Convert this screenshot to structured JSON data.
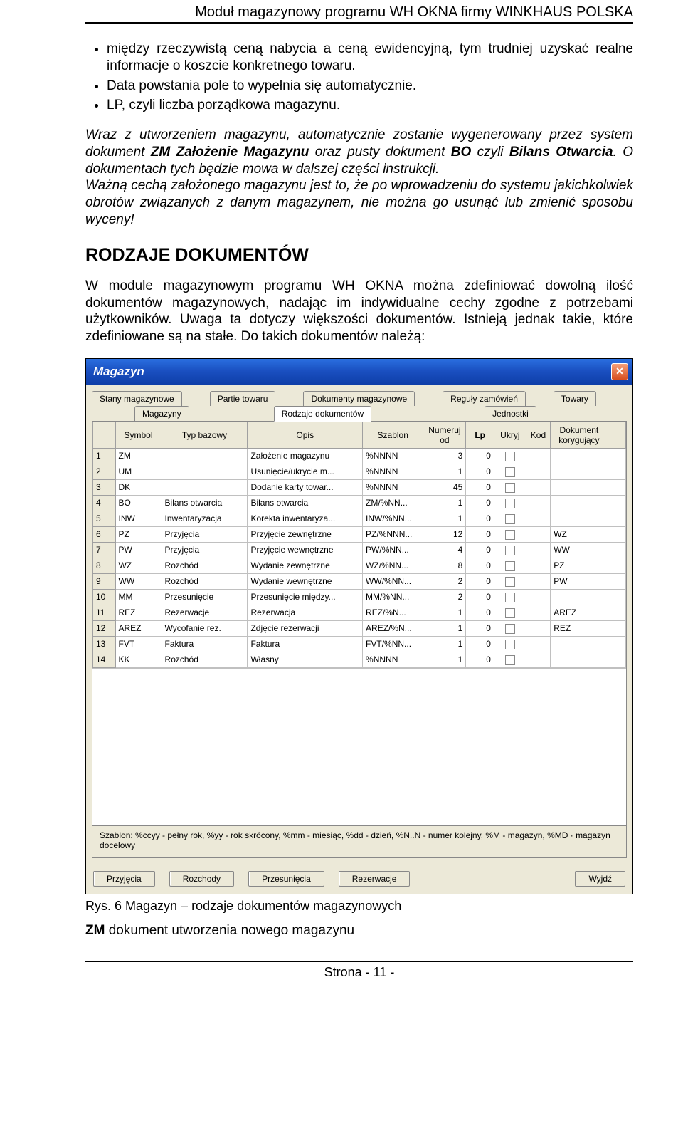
{
  "header": {
    "title": "Moduł magazynowy programu WH OKNA firmy WINKHAUS POLSKA"
  },
  "doc": {
    "bullets": [
      "między rzeczywistą ceną nabycia a ceną ewidencyjną, tym trudniej uzyskać realne informacje o koszcie konkretnego towaru.",
      "Data powstania pole to wypełnia się automatycznie.",
      "LP, czyli liczba porządkowa magazynu."
    ],
    "para1_pre": "Wraz z utworzeniem magazynu, automatycznie zostanie wygenerowany przez system dokument ",
    "para1_zm": "ZM Założenie Magazynu",
    "para1_mid": " oraz pusty dokument ",
    "para1_bo": "BO",
    "para1_mid2": " czyli ",
    "para1_bil": "Bilans Otwarcia",
    "para1_post": ". O dokumentach tych będzie mowa w dalszej części instrukcji.",
    "para2": "Ważną cechą założonego magazynu jest to, że po wprowadzeniu do systemu jakichkolwiek obrotów związanych z danym magazynem, nie można go usunąć lub zmienić sposobu wyceny!",
    "section": "RODZAJE DOKUMENTÓW",
    "para3": "W module magazynowym programu WH OKNA można zdefiniować dowolną ilość dokumentów magazynowych, nadając im indywidualne cechy zgodne z potrzebami użytkowników. Uwaga ta dotyczy większości dokumentów. Istnieją jednak takie, które zdefiniowane są na stałe. Do takich dokumentów należą:"
  },
  "win": {
    "title": "Magazyn",
    "tabs_row2": [
      "Stany magazynowe",
      "Partie towaru",
      "Dokumenty magazynowe",
      "Reguły zamówień",
      "Towary"
    ],
    "tabs_row1": [
      "Magazyny",
      "Rodzaje dokumentów",
      "Jednostki"
    ],
    "active_tab": "Rodzaje dokumentów",
    "columns": [
      "",
      "Symbol",
      "Typ bazowy",
      "Opis",
      "Szablon",
      "Numeruj od",
      "Lp",
      "Ukryj",
      "Kod",
      "Dokument korygujący"
    ],
    "rows": [
      {
        "n": "1",
        "sym": "ZM",
        "typ": "",
        "opis": "Założenie magazynu",
        "sz": "%NNNN",
        "num": "3",
        "lp": "0",
        "ukryj": false,
        "kor": ""
      },
      {
        "n": "2",
        "sym": "UM",
        "typ": "",
        "opis": "Usunięcie/ukrycie m...",
        "sz": "%NNNN",
        "num": "1",
        "lp": "0",
        "ukryj": false,
        "kor": ""
      },
      {
        "n": "3",
        "sym": "DK",
        "typ": "",
        "opis": "Dodanie karty towar...",
        "sz": "%NNNN",
        "num": "45",
        "lp": "0",
        "ukryj": false,
        "kor": ""
      },
      {
        "n": "4",
        "sym": "BO",
        "typ": "Bilans otwarcia",
        "opis": "Bilans otwarcia",
        "sz": "ZM/%NN...",
        "num": "1",
        "lp": "0",
        "ukryj": false,
        "kor": ""
      },
      {
        "n": "5",
        "sym": "INW",
        "typ": "Inwentaryzacja",
        "opis": "Korekta inwentaryza...",
        "sz": "INW/%NN...",
        "num": "1",
        "lp": "0",
        "ukryj": false,
        "kor": ""
      },
      {
        "n": "6",
        "sym": "PZ",
        "typ": "Przyjęcia",
        "opis": "Przyjęcie zewnętrzne",
        "sz": "PZ/%NNN...",
        "num": "12",
        "lp": "0",
        "ukryj": false,
        "kor": "WZ"
      },
      {
        "n": "7",
        "sym": "PW",
        "typ": "Przyjęcia",
        "opis": "Przyjęcie wewnętrzne",
        "sz": "PW/%NN...",
        "num": "4",
        "lp": "0",
        "ukryj": false,
        "kor": "WW"
      },
      {
        "n": "8",
        "sym": "WZ",
        "typ": "Rozchód",
        "opis": "Wydanie zewnętrzne",
        "sz": "WZ/%NN...",
        "num": "8",
        "lp": "0",
        "ukryj": false,
        "kor": "PZ"
      },
      {
        "n": "9",
        "sym": "WW",
        "typ": "Rozchód",
        "opis": "Wydanie wewnętrzne",
        "sz": "WW/%NN...",
        "num": "2",
        "lp": "0",
        "ukryj": false,
        "kor": "PW"
      },
      {
        "n": "10",
        "sym": "MM",
        "typ": "Przesunięcie",
        "opis": "Przesunięcie między...",
        "sz": "MM/%NN...",
        "num": "2",
        "lp": "0",
        "ukryj": false,
        "kor": ""
      },
      {
        "n": "11",
        "sym": "REZ",
        "typ": "Rezerwacje",
        "opis": "Rezerwacja",
        "sz": "REZ/%N...",
        "num": "1",
        "lp": "0",
        "ukryj": false,
        "kor": "AREZ"
      },
      {
        "n": "12",
        "sym": "AREZ",
        "typ": "Wycofanie rez.",
        "opis": "Zdjęcie rezerwacji",
        "sz": "AREZ/%N...",
        "num": "1",
        "lp": "0",
        "ukryj": false,
        "kor": "REZ"
      },
      {
        "n": "13",
        "sym": "FVT",
        "typ": "Faktura",
        "opis": "Faktura",
        "sz": "FVT/%NN...",
        "num": "1",
        "lp": "0",
        "ukryj": false,
        "kor": ""
      },
      {
        "n": "14",
        "sym": "KK",
        "typ": "Rozchód",
        "opis": "Własny",
        "sz": "%NNNN",
        "num": "1",
        "lp": "0",
        "ukryj": false,
        "kor": ""
      }
    ],
    "legend": "Szablon: %ccyy - pełny rok, %yy - rok skrócony, %mm - miesiąc, %dd - dzień, %N..N - numer kolejny, %M - magazyn, %MD · magazyn docelowy",
    "buttons": [
      "Przyjęcia",
      "Rozchody",
      "Przesunięcia",
      "Rezerwacje"
    ],
    "exit_btn": "Wyjdź"
  },
  "caption": "Rys. 6 Magazyn – rodzaje dokumentów magazynowych",
  "after_caption": "ZM",
  "after_caption2": " dokument utworzenia nowego magazynu",
  "footer": "Strona - 11 -"
}
